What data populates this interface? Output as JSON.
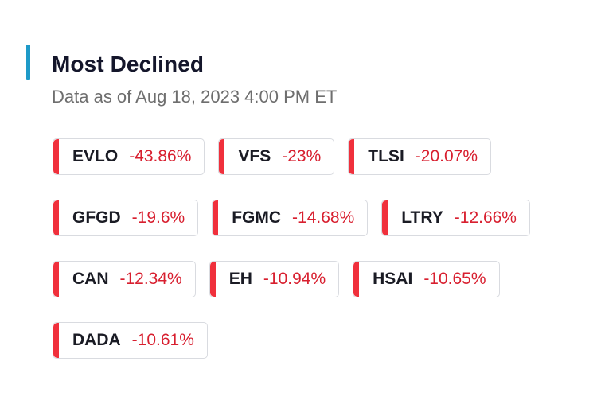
{
  "header": {
    "title": "Most Declined",
    "subtitle": "Data as of Aug 18, 2023 4:00 PM ET"
  },
  "colors": {
    "accent": "#1e9ac8",
    "decline": "#f0303c",
    "decline_text": "#d81f2f"
  },
  "chips": [
    {
      "ticker": "EVLO",
      "change": "-43.86%"
    },
    {
      "ticker": "VFS",
      "change": "-23%"
    },
    {
      "ticker": "TLSI",
      "change": "-20.07%"
    },
    {
      "ticker": "GFGD",
      "change": "-19.6%"
    },
    {
      "ticker": "FGMC",
      "change": "-14.68%"
    },
    {
      "ticker": "LTRY",
      "change": "-12.66%"
    },
    {
      "ticker": "CAN",
      "change": "-12.34%"
    },
    {
      "ticker": "EH",
      "change": "-10.94%"
    },
    {
      "ticker": "HSAI",
      "change": "-10.65%"
    },
    {
      "ticker": "DADA",
      "change": "-10.61%"
    }
  ]
}
